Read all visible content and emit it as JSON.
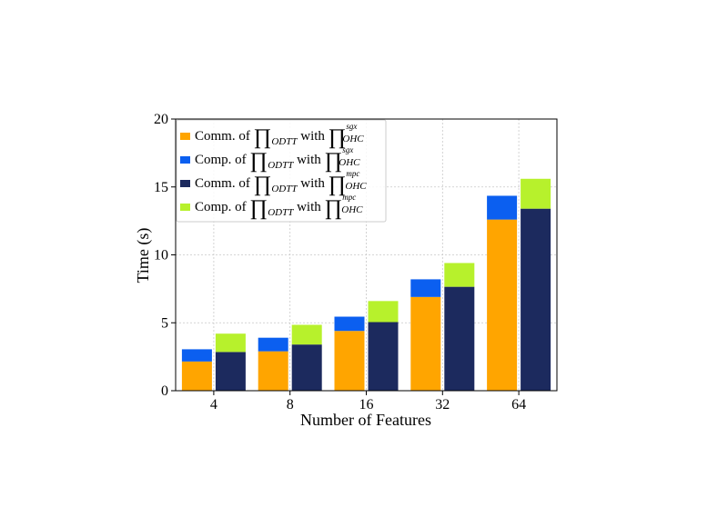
{
  "chart_data": {
    "type": "bar",
    "categories": [
      "4",
      "8",
      "16",
      "32",
      "64"
    ],
    "xlabel": "Number of Features",
    "ylabel": "Time (s)",
    "ylim": [
      0,
      20
    ],
    "yticks": [
      0,
      5,
      10,
      15,
      20
    ],
    "grid": true,
    "legend_position": "top-left",
    "groups": [
      {
        "stack": "sgx",
        "series": [
          {
            "name": "Comm. of ∏ODTT with ∏OHC sgx",
            "color": "#ffa500",
            "values": [
              2.15,
              2.9,
              4.4,
              6.9,
              12.6
            ]
          },
          {
            "name": "Comp. of ∏ODTT with ∏OHC sgx",
            "color": "#0b5ff0",
            "values": [
              0.9,
              1.0,
              1.05,
              1.3,
              1.75
            ]
          }
        ]
      },
      {
        "stack": "mpc",
        "series": [
          {
            "name": "Comm. of ∏ODTT with ∏OHC mpc",
            "color": "#1c2a5e",
            "values": [
              2.85,
              3.4,
              5.05,
              7.65,
              13.4
            ]
          },
          {
            "name": "Comp. of ∏ODTT with ∏OHC mpc",
            "color": "#b7f12c",
            "values": [
              1.35,
              1.45,
              1.55,
              1.75,
              2.2
            ]
          }
        ]
      }
    ],
    "legend": [
      {
        "prefix": "Comm. of ",
        "color": "#ffa500",
        "sup": "sgx"
      },
      {
        "prefix": "Comp. of ",
        "color": "#0b5ff0",
        "sup": "sgx"
      },
      {
        "prefix": "Comm. of ",
        "color": "#1c2a5e",
        "sup": "mpc"
      },
      {
        "prefix": "Comp. of ",
        "color": "#b7f12c",
        "sup": "mpc"
      }
    ],
    "legend_math": {
      "pi": "∏",
      "sub_left": "ODTT",
      "with": "with",
      "sub_right": "OHC"
    }
  }
}
